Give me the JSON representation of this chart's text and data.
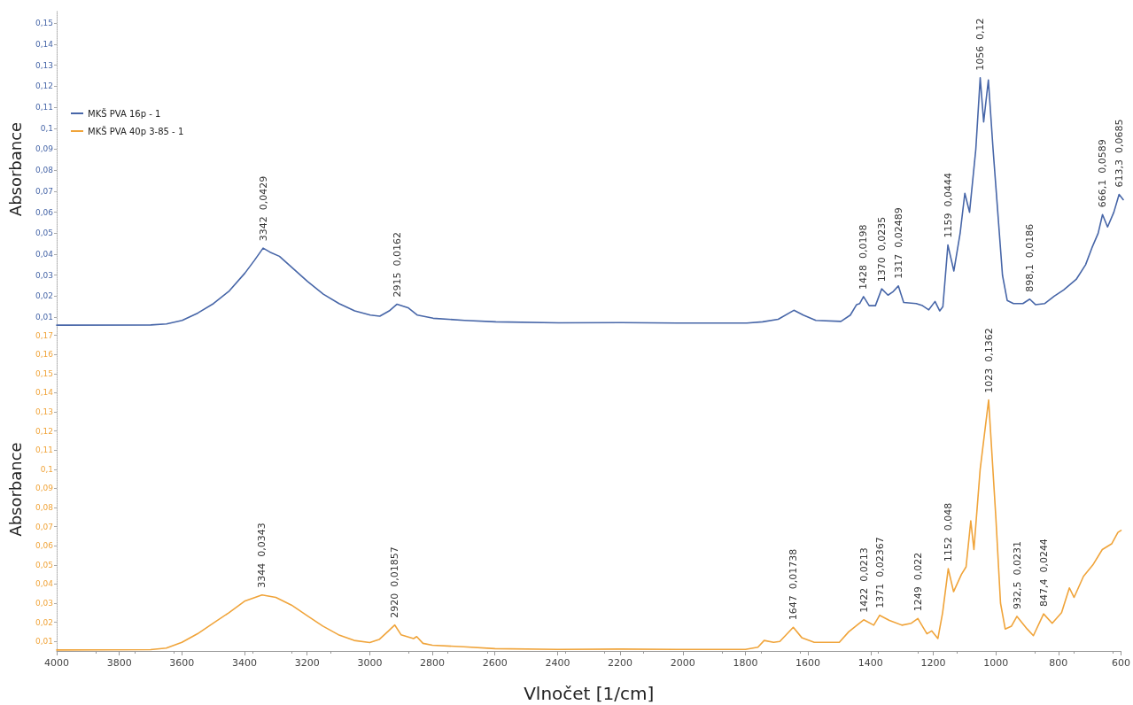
{
  "chart_data": [
    {
      "type": "line",
      "ylabel": "Absorbance",
      "legend": "top left",
      "marker": "none",
      "grid": false,
      "tick_labels": "y",
      "xlim": [
        4000,
        600
      ],
      "xticks": [
        4000,
        3800,
        3600,
        3400,
        3200,
        3000,
        2800,
        2600,
        2400,
        2200,
        2000,
        1800,
        1600,
        1400,
        1200,
        1000,
        800,
        600
      ],
      "ylim": [
        0.005,
        0.156
      ],
      "yticks": [
        {
          "value": 0.01,
          "label": "0,01"
        },
        {
          "value": 0.02,
          "label": "0,02"
        },
        {
          "value": 0.03,
          "label": "0,03"
        },
        {
          "value": 0.04,
          "label": "0,04"
        },
        {
          "value": 0.05,
          "label": "0,05"
        },
        {
          "value": 0.06,
          "label": "0,06"
        },
        {
          "value": 0.07,
          "label": "0,07"
        },
        {
          "value": 0.08,
          "label": "0,08"
        },
        {
          "value": 0.09,
          "label": "0,09"
        },
        {
          "value": 0.1,
          "label": "0,1"
        },
        {
          "value": 0.11,
          "label": "0,11"
        },
        {
          "value": 0.12,
          "label": "0,12"
        },
        {
          "value": 0.13,
          "label": "0,13"
        },
        {
          "value": 0.14,
          "label": "0,14"
        },
        {
          "value": 0.15,
          "label": "0,15"
        }
      ],
      "series": [
        {
          "name": "MKŠ PVA 16p - 1",
          "color": "#4766a8",
          "x": [
            4000,
            3700,
            3650,
            3600,
            3550,
            3500,
            3450,
            3400,
            3370,
            3342,
            3320,
            3290,
            3260,
            3200,
            3150,
            3100,
            3050,
            3000,
            2970,
            2940,
            2915,
            2880,
            2850,
            2800,
            2700,
            2600,
            2400,
            2200,
            2000,
            1800,
            1750,
            1700,
            1650,
            1620,
            1580,
            1500,
            1470,
            1450,
            1440,
            1428,
            1410,
            1390,
            1370,
            1350,
            1335,
            1317,
            1300,
            1260,
            1240,
            1220,
            1200,
            1185,
            1175,
            1159,
            1140,
            1120,
            1105,
            1090,
            1070,
            1056,
            1045,
            1030,
            1015,
            1000,
            985,
            970,
            950,
            920,
            898.1,
            880,
            850,
            820,
            790,
            750,
            720,
            700,
            680,
            666.1,
            650,
            630,
            613.3,
            600
          ],
          "values": [
            0.0062,
            0.0063,
            0.0068,
            0.0085,
            0.012,
            0.0165,
            0.0225,
            0.031,
            0.037,
            0.0429,
            0.041,
            0.039,
            0.035,
            0.027,
            0.021,
            0.0165,
            0.013,
            0.011,
            0.0105,
            0.013,
            0.0162,
            0.0145,
            0.011,
            0.0095,
            0.0085,
            0.0078,
            0.0073,
            0.0074,
            0.0072,
            0.0072,
            0.0078,
            0.009,
            0.0133,
            0.011,
            0.0085,
            0.008,
            0.011,
            0.016,
            0.0165,
            0.0198,
            0.0155,
            0.0155,
            0.0235,
            0.0205,
            0.022,
            0.02489,
            0.017,
            0.0165,
            0.0155,
            0.0135,
            0.0175,
            0.013,
            0.015,
            0.0444,
            0.032,
            0.05,
            0.069,
            0.06,
            0.09,
            0.124,
            0.103,
            0.123,
            0.09,
            0.06,
            0.03,
            0.018,
            0.0165,
            0.0165,
            0.0186,
            0.016,
            0.0165,
            0.02,
            0.023,
            0.028,
            0.035,
            0.043,
            0.05,
            0.0589,
            0.053,
            0.06,
            0.0685,
            0.066
          ]
        }
      ],
      "annotations": [
        {
          "text": "3342  0,0429",
          "x": 3342,
          "y": 0.0429
        },
        {
          "text": "2915  0,0162",
          "x": 2915,
          "y": 0.0162
        },
        {
          "text": "1428  0,0198",
          "x": 1428,
          "y": 0.0198
        },
        {
          "text": "1370  0,0235",
          "x": 1370,
          "y": 0.0235
        },
        {
          "text": "1317  0,02489",
          "x": 1317,
          "y": 0.02489
        },
        {
          "text": "1159  0,0444",
          "x": 1159,
          "y": 0.0444
        },
        {
          "text": "1056  0,12",
          "x": 1056,
          "y": 0.124
        },
        {
          "text": "898,1  0,0186",
          "x": 898.1,
          "y": 0.0186
        },
        {
          "text": "666,1  0,0589",
          "x": 666.1,
          "y": 0.0589
        },
        {
          "text": "613,3  0,0685",
          "x": 613.3,
          "y": 0.0685
        }
      ]
    },
    {
      "type": "line",
      "ylabel": "Absorbance",
      "xlabel": "Vlnočet [1/cm]",
      "legend": "top left",
      "marker": "none",
      "grid": false,
      "xlim": [
        4000,
        600
      ],
      "xticks": [
        4000,
        3800,
        3600,
        3400,
        3200,
        3000,
        2800,
        2600,
        2400,
        2200,
        2000,
        1800,
        1600,
        1400,
        1200,
        1000,
        800,
        600
      ],
      "ylim": [
        0.005,
        0.174
      ],
      "yticks": [
        {
          "value": 0.01,
          "label": "0,01"
        },
        {
          "value": 0.02,
          "label": "0,02"
        },
        {
          "value": 0.03,
          "label": "0,03"
        },
        {
          "value": 0.04,
          "label": "0,04"
        },
        {
          "value": 0.05,
          "label": "0,05"
        },
        {
          "value": 0.06,
          "label": "0,06"
        },
        {
          "value": 0.07,
          "label": "0,07"
        },
        {
          "value": 0.08,
          "label": "0,08"
        },
        {
          "value": 0.09,
          "label": "0,09"
        },
        {
          "value": 0.1,
          "label": "0,1"
        },
        {
          "value": 0.11,
          "label": "0,11"
        },
        {
          "value": 0.12,
          "label": "0,12"
        },
        {
          "value": 0.13,
          "label": "0,13"
        },
        {
          "value": 0.14,
          "label": "0,14"
        },
        {
          "value": 0.15,
          "label": "0,15"
        },
        {
          "value": 0.16,
          "label": "0,16"
        },
        {
          "value": 0.17,
          "label": "0,17"
        }
      ],
      "series": [
        {
          "name": "MKŠ PVA 40p 3-85 - 1",
          "color": "#f0a43a",
          "x": [
            4000,
            3700,
            3650,
            3600,
            3550,
            3500,
            3450,
            3400,
            3344,
            3300,
            3250,
            3200,
            3150,
            3100,
            3050,
            3000,
            2970,
            2940,
            2920,
            2900,
            2860,
            2850,
            2830,
            2800,
            2700,
            2600,
            2400,
            2200,
            2000,
            1800,
            1760,
            1740,
            1710,
            1690,
            1647,
            1620,
            1580,
            1500,
            1470,
            1440,
            1422,
            1390,
            1371,
            1340,
            1300,
            1270,
            1249,
            1220,
            1205,
            1185,
            1170,
            1152,
            1135,
            1110,
            1095,
            1080,
            1070,
            1050,
            1023,
            1000,
            985,
            970,
            950,
            932.5,
            900,
            880,
            847.4,
            820,
            790,
            765,
            750,
            720,
            690,
            660,
            630,
            610,
            600
          ],
          "values": [
            0.0055,
            0.0057,
            0.0065,
            0.0095,
            0.014,
            0.0195,
            0.025,
            0.031,
            0.0343,
            0.033,
            0.029,
            0.0235,
            0.018,
            0.0135,
            0.0105,
            0.0094,
            0.011,
            0.0155,
            0.01857,
            0.0135,
            0.0115,
            0.0125,
            0.009,
            0.008,
            0.0072,
            0.0062,
            0.0058,
            0.006,
            0.0058,
            0.0058,
            0.007,
            0.0105,
            0.0095,
            0.01,
            0.01738,
            0.012,
            0.0095,
            0.0095,
            0.015,
            0.019,
            0.0213,
            0.0185,
            0.02367,
            0.021,
            0.0185,
            0.0195,
            0.022,
            0.014,
            0.0155,
            0.0115,
            0.025,
            0.048,
            0.036,
            0.045,
            0.049,
            0.073,
            0.058,
            0.1,
            0.1362,
            0.075,
            0.03,
            0.0165,
            0.018,
            0.0231,
            0.0165,
            0.013,
            0.0244,
            0.0195,
            0.025,
            0.038,
            0.033,
            0.044,
            0.05,
            0.058,
            0.061,
            0.067,
            0.068
          ]
        }
      ],
      "annotations": [
        {
          "text": "3344  0,0343",
          "x": 3344,
          "y": 0.0343
        },
        {
          "text": "2920  0,01857",
          "x": 2920,
          "y": 0.01857
        },
        {
          "text": "1647  0,01738",
          "x": 1647,
          "y": 0.01738
        },
        {
          "text": "1422  0,0213",
          "x": 1422,
          "y": 0.0213
        },
        {
          "text": "1371  0,02367",
          "x": 1371,
          "y": 0.02367
        },
        {
          "text": "1249  0,022",
          "x": 1249,
          "y": 0.022
        },
        {
          "text": "1152  0,048",
          "x": 1152,
          "y": 0.048
        },
        {
          "text": "1023  0,1362",
          "x": 1023,
          "y": 0.1362
        },
        {
          "text": "932,5  0,0231",
          "x": 932.5,
          "y": 0.0231
        },
        {
          "text": "847,4  0,0244",
          "x": 847.4,
          "y": 0.0244
        }
      ]
    }
  ]
}
